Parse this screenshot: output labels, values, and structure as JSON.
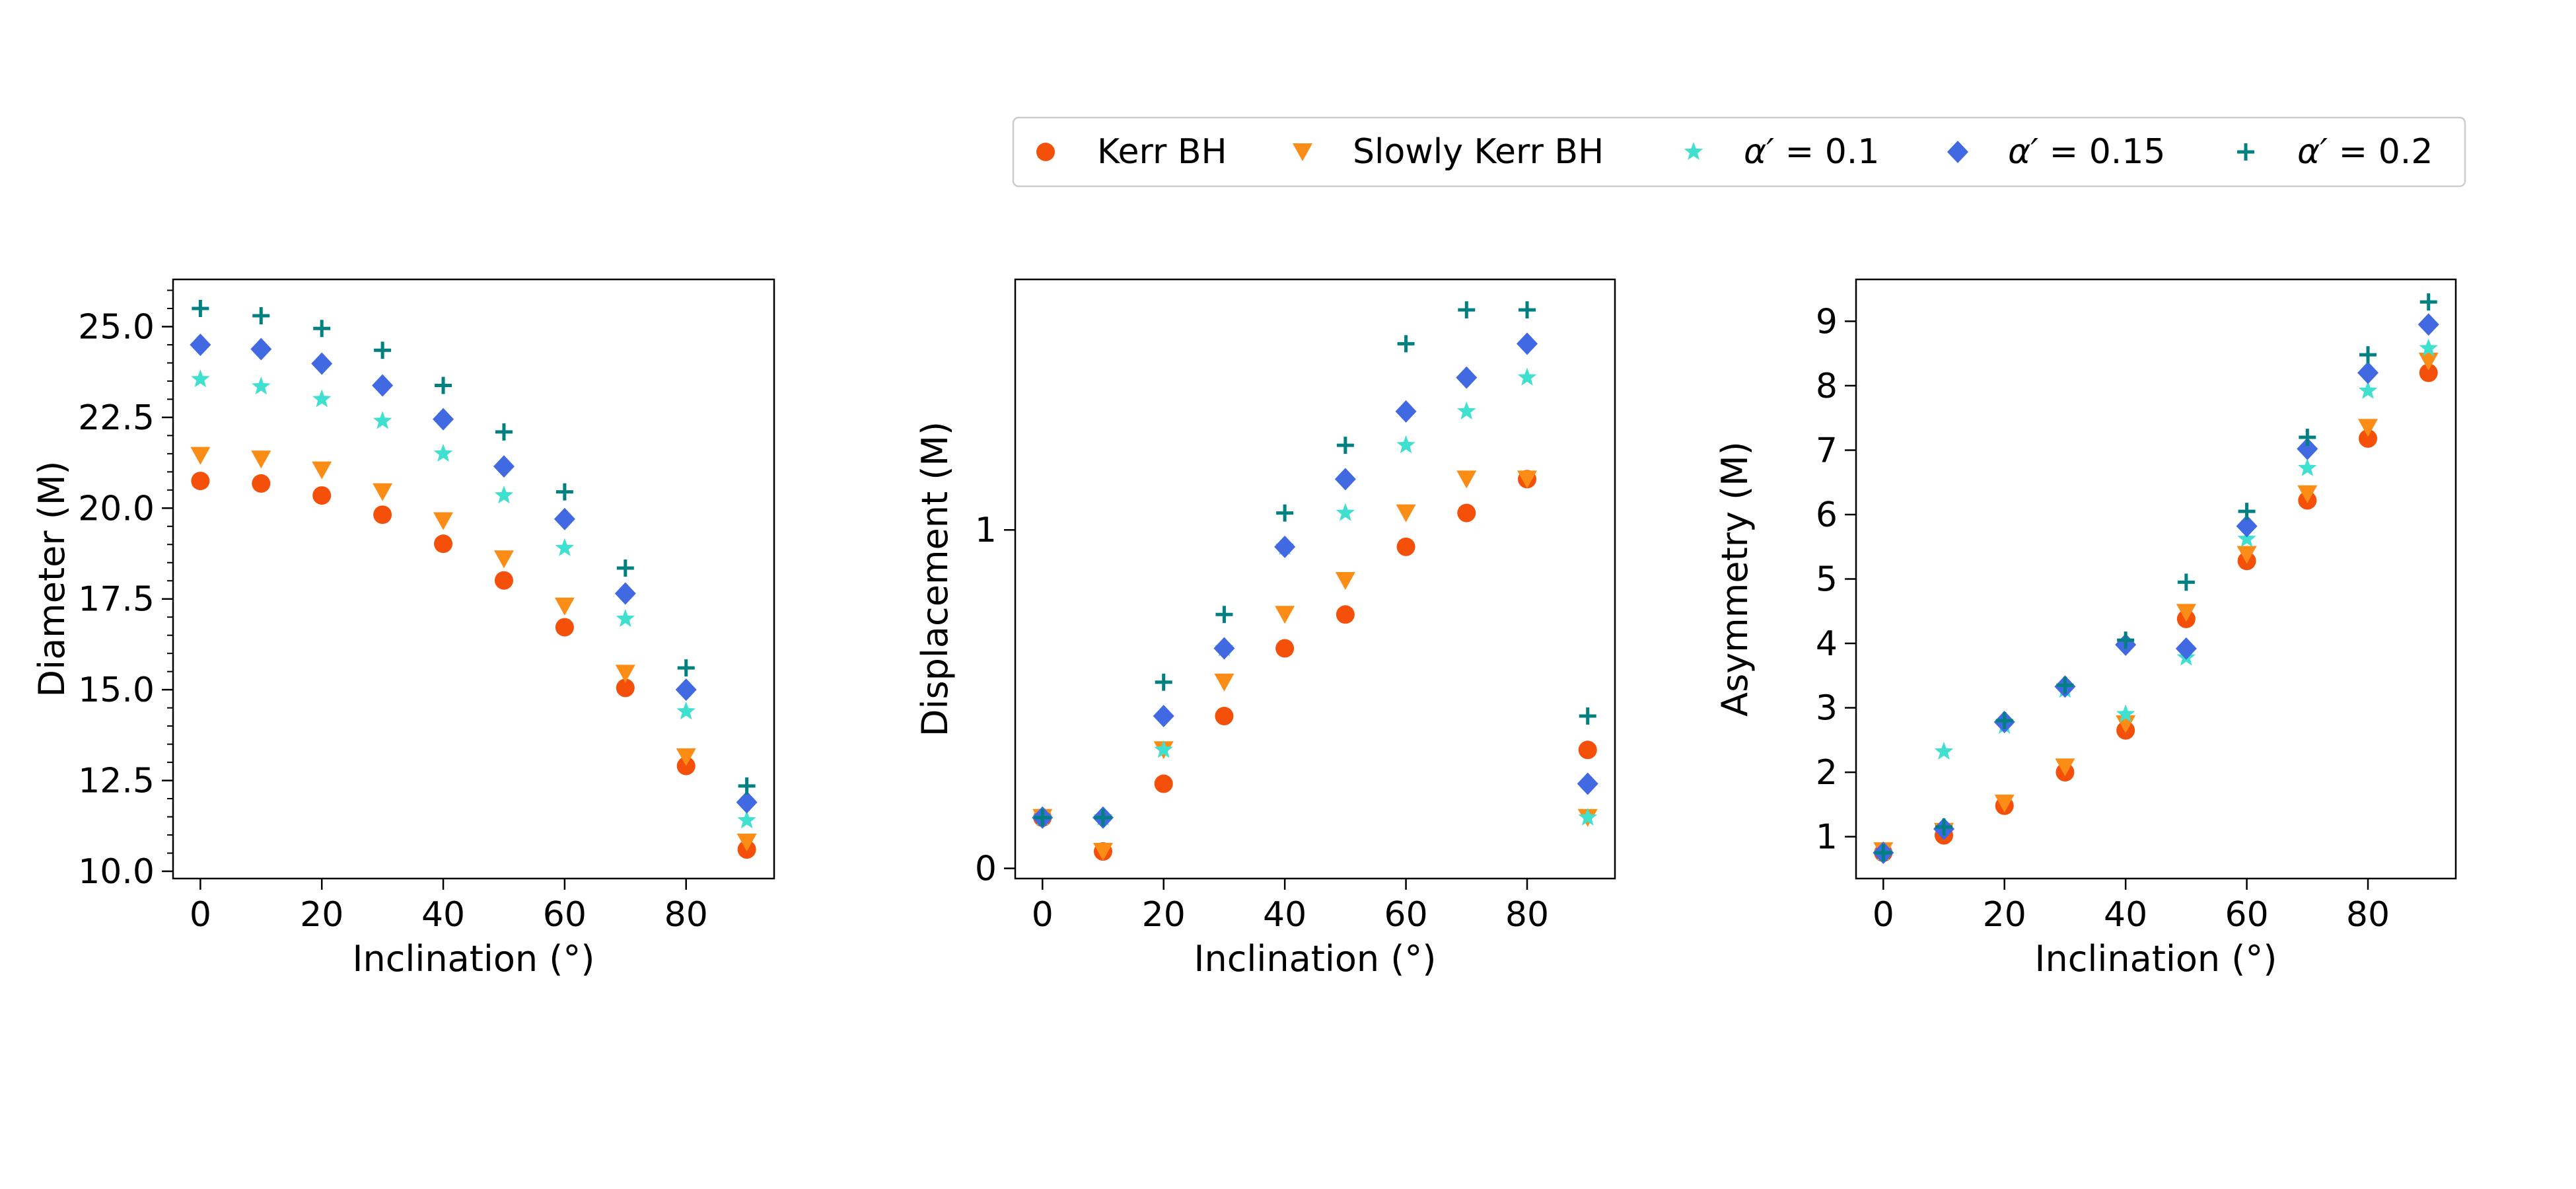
{
  "legend": {
    "entries": [
      {
        "key": "kerr",
        "label": "Kerr BH"
      },
      {
        "key": "slow",
        "label": "Slowly Kerr BH"
      },
      {
        "key": "a01",
        "prefix": "α′",
        "suffix": " = 0.1"
      },
      {
        "key": "a015",
        "prefix": "α′",
        "suffix": " = 0.15"
      },
      {
        "key": "a02",
        "prefix": "α′",
        "suffix": " = 0.2"
      }
    ]
  },
  "series_styles": {
    "kerr": {
      "marker": "circle",
      "color": "#f4500a"
    },
    "slow": {
      "marker": "triangle-down",
      "color": "#fb8c16"
    },
    "a01": {
      "marker": "star",
      "color": "#40e0d0"
    },
    "a015": {
      "marker": "diamond",
      "color": "#4169e1"
    },
    "a02": {
      "marker": "plus",
      "color": "#008080"
    }
  },
  "chart_data": [
    {
      "type": "scatter",
      "id": "diameter",
      "xlabel": "Inclination (°)",
      "ylabel": "Diameter (M)",
      "xlim": [
        -4.5,
        94.5
      ],
      "ylim": [
        9.8,
        26.3
      ],
      "xticks": [
        0,
        20,
        40,
        60,
        80
      ],
      "xtick_labels": [
        "0",
        "20",
        "40",
        "60",
        "80"
      ],
      "yticks": [
        10.0,
        12.5,
        15.0,
        17.5,
        20.0,
        22.5,
        25.0
      ],
      "ytick_labels": [
        "10.0",
        "12.5",
        "15.0",
        "17.5",
        "20.0",
        "22.5",
        "25.0"
      ],
      "yminor_step": 0.5,
      "x": [
        0,
        10,
        20,
        30,
        40,
        50,
        60,
        70,
        80,
        90
      ],
      "series": [
        {
          "key": "kerr",
          "values": [
            20.75,
            20.68,
            20.35,
            19.82,
            19.02,
            18.01,
            16.72,
            15.05,
            12.9,
            10.6
          ]
        },
        {
          "key": "slow",
          "values": [
            21.45,
            21.35,
            21.05,
            20.45,
            19.65,
            18.6,
            17.3,
            15.45,
            13.15,
            10.8
          ]
        },
        {
          "key": "a01",
          "values": [
            23.55,
            23.35,
            23.0,
            22.4,
            21.5,
            20.35,
            18.9,
            16.95,
            14.4,
            11.4
          ]
        },
        {
          "key": "a015",
          "values": [
            24.5,
            24.38,
            23.98,
            23.38,
            22.45,
            21.15,
            19.7,
            17.65,
            15.0,
            11.9
          ]
        },
        {
          "key": "a02",
          "values": [
            25.5,
            25.3,
            24.95,
            24.35,
            23.38,
            22.1,
            20.45,
            18.35,
            15.6,
            12.35
          ]
        }
      ]
    },
    {
      "type": "scatter",
      "id": "displacement",
      "xlabel": "Inclination (°)",
      "ylabel": "Displacement (M)",
      "xlim": [
        -4.5,
        94.5
      ],
      "ylim": [
        -0.03,
        1.74
      ],
      "xticks": [
        0,
        20,
        40,
        60,
        80
      ],
      "xtick_labels": [
        "0",
        "20",
        "40",
        "60",
        "80"
      ],
      "yticks": [
        0,
        1
      ],
      "ytick_labels": [
        "0",
        "1"
      ],
      "x": [
        0,
        10,
        20,
        30,
        40,
        50,
        60,
        70,
        80,
        90
      ],
      "series": [
        {
          "key": "kerr",
          "values": [
            0.15,
            0.05,
            0.25,
            0.45,
            0.65,
            0.75,
            0.95,
            1.05,
            1.15,
            0.35
          ]
        },
        {
          "key": "slow",
          "values": [
            0.15,
            0.05,
            0.35,
            0.55,
            0.75,
            0.85,
            1.05,
            1.15,
            1.15,
            0.15
          ]
        },
        {
          "key": "a01",
          "values": [
            0.15,
            0.15,
            0.35,
            0.65,
            0.95,
            1.05,
            1.25,
            1.35,
            1.45,
            0.15
          ]
        },
        {
          "key": "a015",
          "values": [
            0.15,
            0.15,
            0.45,
            0.65,
            0.95,
            1.15,
            1.35,
            1.45,
            1.55,
            0.25
          ]
        },
        {
          "key": "a02",
          "values": [
            0.15,
            0.15,
            0.55,
            0.75,
            1.05,
            1.25,
            1.55,
            1.65,
            1.65,
            0.45
          ]
        }
      ]
    },
    {
      "type": "scatter",
      "id": "asymmetry",
      "xlabel": "Inclination (°)",
      "ylabel": "Asymmetry (M)",
      "xlim": [
        -4.5,
        94.5
      ],
      "ylim": [
        0.35,
        9.65
      ],
      "xticks": [
        0,
        20,
        40,
        60,
        80
      ],
      "xtick_labels": [
        "0",
        "20",
        "40",
        "60",
        "80"
      ],
      "yticks": [
        1,
        2,
        3,
        4,
        5,
        6,
        7,
        8,
        9
      ],
      "ytick_labels": [
        "1",
        "2",
        "3",
        "4",
        "5",
        "6",
        "7",
        "8",
        "9"
      ],
      "x": [
        0,
        10,
        20,
        30,
        40,
        50,
        60,
        70,
        80,
        90
      ],
      "series": [
        {
          "key": "kerr",
          "values": [
            0.75,
            1.02,
            1.48,
            2.0,
            2.65,
            4.38,
            5.28,
            6.22,
            7.18,
            8.2
          ]
        },
        {
          "key": "slow",
          "values": [
            0.78,
            1.08,
            1.52,
            2.08,
            2.75,
            4.48,
            5.38,
            6.32,
            7.35,
            8.38
          ]
        },
        {
          "key": "a01",
          "values": [
            0.75,
            2.32,
            2.72,
            3.28,
            2.9,
            3.78,
            5.62,
            6.72,
            7.92,
            8.58
          ]
        },
        {
          "key": "a015",
          "values": [
            0.75,
            1.12,
            2.78,
            3.33,
            3.98,
            3.92,
            5.82,
            7.02,
            8.2,
            8.95
          ]
        },
        {
          "key": "a02",
          "values": [
            0.75,
            1.15,
            2.8,
            3.35,
            4.05,
            4.95,
            6.05,
            7.2,
            8.48,
            9.3
          ]
        }
      ]
    }
  ]
}
